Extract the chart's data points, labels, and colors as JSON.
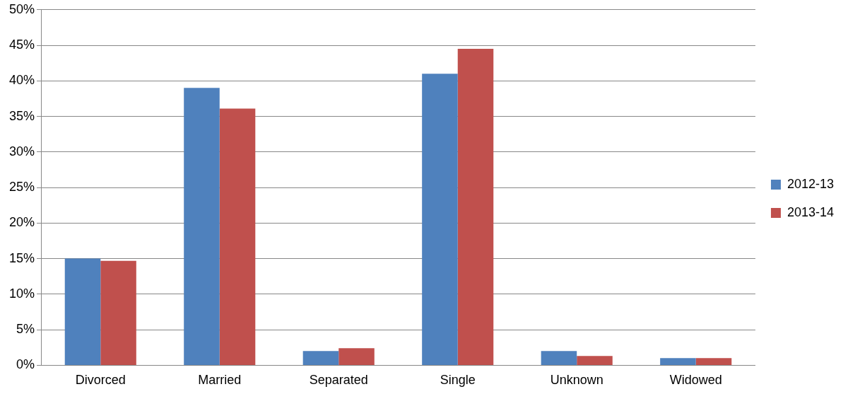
{
  "chart_data": {
    "type": "bar",
    "categories": [
      "Divorced",
      "Married",
      "Separated",
      "Single",
      "Unknown",
      "Widowed"
    ],
    "series": [
      {
        "name": "2012-13",
        "color": "#4f81bd",
        "values": [
          15.0,
          39.0,
          2.0,
          41.0,
          2.0,
          1.0
        ]
      },
      {
        "name": "2013-14",
        "color": "#c0504d",
        "values": [
          14.7,
          36.1,
          2.4,
          44.5,
          1.3,
          1.0
        ]
      }
    ],
    "ylim": [
      0,
      50
    ],
    "yticks": [
      {
        "value": 0,
        "label": "0%"
      },
      {
        "value": 5,
        "label": "5%"
      },
      {
        "value": 10,
        "label": "10%"
      },
      {
        "value": 15,
        "label": "15%"
      },
      {
        "value": 20,
        "label": "20%"
      },
      {
        "value": 25,
        "label": "25%"
      },
      {
        "value": 30,
        "label": "30%"
      },
      {
        "value": 35,
        "label": "35%"
      },
      {
        "value": 40,
        "label": "40%"
      },
      {
        "value": 45,
        "label": "45%"
      },
      {
        "value": 50,
        "label": "50%"
      }
    ],
    "grid": "y",
    "legend": "right"
  }
}
